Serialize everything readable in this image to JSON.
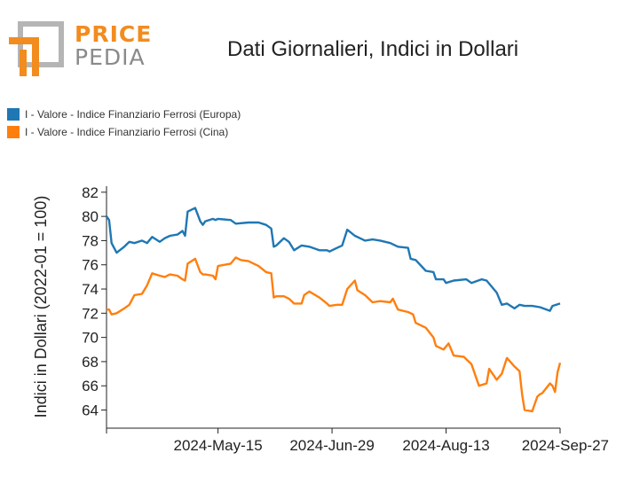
{
  "logo": {
    "word1": "PRICE",
    "word2": "PEDIA",
    "accent_color": "#f28c1e",
    "gray_color": "#9a9a9a"
  },
  "header": {
    "title": "Dati Giornalieri, Indici in Dollari"
  },
  "legend": [
    {
      "label": "I - Valore - Indice Finanziario Ferrosi (Europa)",
      "color": "#1f77b4"
    },
    {
      "label": "I - Valore - Indice Finanziario Ferrosi (Cina)",
      "color": "#ff7f0e"
    }
  ],
  "chart_data": {
    "type": "line",
    "title": "Dati Giornalieri, Indici in Dollari",
    "xlabel": "",
    "ylabel": "Indici in Dollari (2022-01 = 100)",
    "ylim": [
      62.5,
      82.5
    ],
    "yticks": [
      64,
      66,
      68,
      70,
      72,
      74,
      76,
      78,
      80,
      82
    ],
    "xlim": [
      "2024-04-01",
      "2024-09-27"
    ],
    "xticks": [
      "2024-05-15",
      "2024-06-29",
      "2024-08-13",
      "2024-09-27"
    ],
    "xtick_labels": [
      "2024-May-15",
      "2024-Jun-29",
      "2024-Aug-13",
      "2024-Sep-27"
    ],
    "grid": false,
    "legend_position": "top-left",
    "series": [
      {
        "name": "I - Valore - Indice Finanziario Ferrosi (Europa)",
        "color": "#1f77b4",
        "points": [
          [
            "2024-04-01",
            80.0
          ],
          [
            "2024-04-02",
            79.7
          ],
          [
            "2024-04-03",
            77.8
          ],
          [
            "2024-04-05",
            77.0
          ],
          [
            "2024-04-08",
            77.5
          ],
          [
            "2024-04-10",
            77.9
          ],
          [
            "2024-04-12",
            77.8
          ],
          [
            "2024-04-15",
            78.0
          ],
          [
            "2024-04-17",
            77.8
          ],
          [
            "2024-04-19",
            78.3
          ],
          [
            "2024-04-22",
            77.9
          ],
          [
            "2024-04-24",
            78.2
          ],
          [
            "2024-04-26",
            78.4
          ],
          [
            "2024-04-29",
            78.5
          ],
          [
            "2024-05-01",
            78.8
          ],
          [
            "2024-05-02",
            78.4
          ],
          [
            "2024-05-03",
            80.4
          ],
          [
            "2024-05-06",
            80.7
          ],
          [
            "2024-05-08",
            79.6
          ],
          [
            "2024-05-09",
            79.3
          ],
          [
            "2024-05-10",
            79.6
          ],
          [
            "2024-05-13",
            79.8
          ],
          [
            "2024-05-14",
            79.7
          ],
          [
            "2024-05-15",
            79.8
          ],
          [
            "2024-05-20",
            79.7
          ],
          [
            "2024-05-22",
            79.4
          ],
          [
            "2024-05-27",
            79.5
          ],
          [
            "2024-05-31",
            79.5
          ],
          [
            "2024-06-03",
            79.3
          ],
          [
            "2024-06-05",
            79.0
          ],
          [
            "2024-06-06",
            77.5
          ],
          [
            "2024-06-07",
            77.6
          ],
          [
            "2024-06-10",
            78.2
          ],
          [
            "2024-06-12",
            77.9
          ],
          [
            "2024-06-14",
            77.2
          ],
          [
            "2024-06-17",
            77.6
          ],
          [
            "2024-06-20",
            77.5
          ],
          [
            "2024-06-24",
            77.2
          ],
          [
            "2024-06-27",
            77.2
          ],
          [
            "2024-06-28",
            77.1
          ],
          [
            "2024-07-01",
            77.4
          ],
          [
            "2024-07-03",
            77.6
          ],
          [
            "2024-07-05",
            78.9
          ],
          [
            "2024-07-08",
            78.4
          ],
          [
            "2024-07-10",
            78.2
          ],
          [
            "2024-07-12",
            78.0
          ],
          [
            "2024-07-15",
            78.1
          ],
          [
            "2024-07-18",
            78.0
          ],
          [
            "2024-07-22",
            77.8
          ],
          [
            "2024-07-25",
            77.5
          ],
          [
            "2024-07-29",
            77.4
          ],
          [
            "2024-07-30",
            76.5
          ],
          [
            "2024-08-01",
            76.4
          ],
          [
            "2024-08-05",
            75.5
          ],
          [
            "2024-08-08",
            75.4
          ],
          [
            "2024-08-09",
            74.8
          ],
          [
            "2024-08-12",
            74.8
          ],
          [
            "2024-08-13",
            74.5
          ],
          [
            "2024-08-16",
            74.7
          ],
          [
            "2024-08-21",
            74.8
          ],
          [
            "2024-08-23",
            74.5
          ],
          [
            "2024-08-27",
            74.8
          ],
          [
            "2024-08-29",
            74.7
          ],
          [
            "2024-09-02",
            73.7
          ],
          [
            "2024-09-04",
            72.7
          ],
          [
            "2024-09-06",
            72.8
          ],
          [
            "2024-09-09",
            72.4
          ],
          [
            "2024-09-11",
            72.7
          ],
          [
            "2024-09-13",
            72.6
          ],
          [
            "2024-09-16",
            72.6
          ],
          [
            "2024-09-19",
            72.5
          ],
          [
            "2024-09-23",
            72.2
          ],
          [
            "2024-09-24",
            72.6
          ],
          [
            "2024-09-27",
            72.8
          ]
        ]
      },
      {
        "name": "I - Valore - Indice Finanziario Ferrosi (Cina)",
        "color": "#ff7f0e",
        "points": [
          [
            "2024-04-01",
            72.3
          ],
          [
            "2024-04-02",
            72.3
          ],
          [
            "2024-04-03",
            71.9
          ],
          [
            "2024-04-05",
            72.0
          ],
          [
            "2024-04-08",
            72.4
          ],
          [
            "2024-04-10",
            72.7
          ],
          [
            "2024-04-12",
            73.5
          ],
          [
            "2024-04-15",
            73.6
          ],
          [
            "2024-04-17",
            74.3
          ],
          [
            "2024-04-19",
            75.3
          ],
          [
            "2024-04-22",
            75.1
          ],
          [
            "2024-04-24",
            75.0
          ],
          [
            "2024-04-26",
            75.2
          ],
          [
            "2024-04-29",
            75.1
          ],
          [
            "2024-05-01",
            74.8
          ],
          [
            "2024-05-02",
            74.7
          ],
          [
            "2024-05-03",
            76.1
          ],
          [
            "2024-05-06",
            76.5
          ],
          [
            "2024-05-08",
            75.4
          ],
          [
            "2024-05-09",
            75.2
          ],
          [
            "2024-05-10",
            75.2
          ],
          [
            "2024-05-13",
            75.1
          ],
          [
            "2024-05-14",
            74.8
          ],
          [
            "2024-05-15",
            75.9
          ],
          [
            "2024-05-20",
            76.1
          ],
          [
            "2024-05-22",
            76.6
          ],
          [
            "2024-05-24",
            76.4
          ],
          [
            "2024-05-27",
            76.3
          ],
          [
            "2024-05-31",
            75.9
          ],
          [
            "2024-06-03",
            75.4
          ],
          [
            "2024-06-05",
            75.3
          ],
          [
            "2024-06-06",
            73.3
          ],
          [
            "2024-06-07",
            73.4
          ],
          [
            "2024-06-10",
            73.4
          ],
          [
            "2024-06-12",
            73.2
          ],
          [
            "2024-06-14",
            72.8
          ],
          [
            "2024-06-17",
            72.8
          ],
          [
            "2024-06-18",
            73.5
          ],
          [
            "2024-06-20",
            73.8
          ],
          [
            "2024-06-24",
            73.3
          ],
          [
            "2024-06-27",
            72.8
          ],
          [
            "2024-06-28",
            72.6
          ],
          [
            "2024-07-01",
            72.7
          ],
          [
            "2024-07-03",
            72.7
          ],
          [
            "2024-07-05",
            74.0
          ],
          [
            "2024-07-08",
            74.7
          ],
          [
            "2024-07-09",
            73.9
          ],
          [
            "2024-07-12",
            73.5
          ],
          [
            "2024-07-15",
            72.9
          ],
          [
            "2024-07-18",
            73.0
          ],
          [
            "2024-07-22",
            72.9
          ],
          [
            "2024-07-23",
            73.2
          ],
          [
            "2024-07-25",
            72.3
          ],
          [
            "2024-07-29",
            72.1
          ],
          [
            "2024-07-31",
            71.9
          ],
          [
            "2024-08-01",
            71.2
          ],
          [
            "2024-08-05",
            70.8
          ],
          [
            "2024-08-08",
            70.0
          ],
          [
            "2024-08-09",
            69.3
          ],
          [
            "2024-08-12",
            69.0
          ],
          [
            "2024-08-14",
            69.5
          ],
          [
            "2024-08-16",
            68.5
          ],
          [
            "2024-08-20",
            68.4
          ],
          [
            "2024-08-23",
            67.8
          ],
          [
            "2024-08-26",
            66.0
          ],
          [
            "2024-08-29",
            66.2
          ],
          [
            "2024-08-30",
            67.4
          ],
          [
            "2024-09-02",
            66.5
          ],
          [
            "2024-09-04",
            67.0
          ],
          [
            "2024-09-06",
            68.3
          ],
          [
            "2024-09-09",
            67.6
          ],
          [
            "2024-09-11",
            67.2
          ],
          [
            "2024-09-12",
            65.3
          ],
          [
            "2024-09-13",
            64.0
          ],
          [
            "2024-09-16",
            63.9
          ],
          [
            "2024-09-18",
            65.1
          ],
          [
            "2024-09-19",
            65.3
          ],
          [
            "2024-09-20",
            65.4
          ],
          [
            "2024-09-23",
            66.2
          ],
          [
            "2024-09-24",
            66.0
          ],
          [
            "2024-09-25",
            65.5
          ],
          [
            "2024-09-26",
            67.1
          ],
          [
            "2024-09-27",
            67.9
          ]
        ]
      }
    ]
  }
}
